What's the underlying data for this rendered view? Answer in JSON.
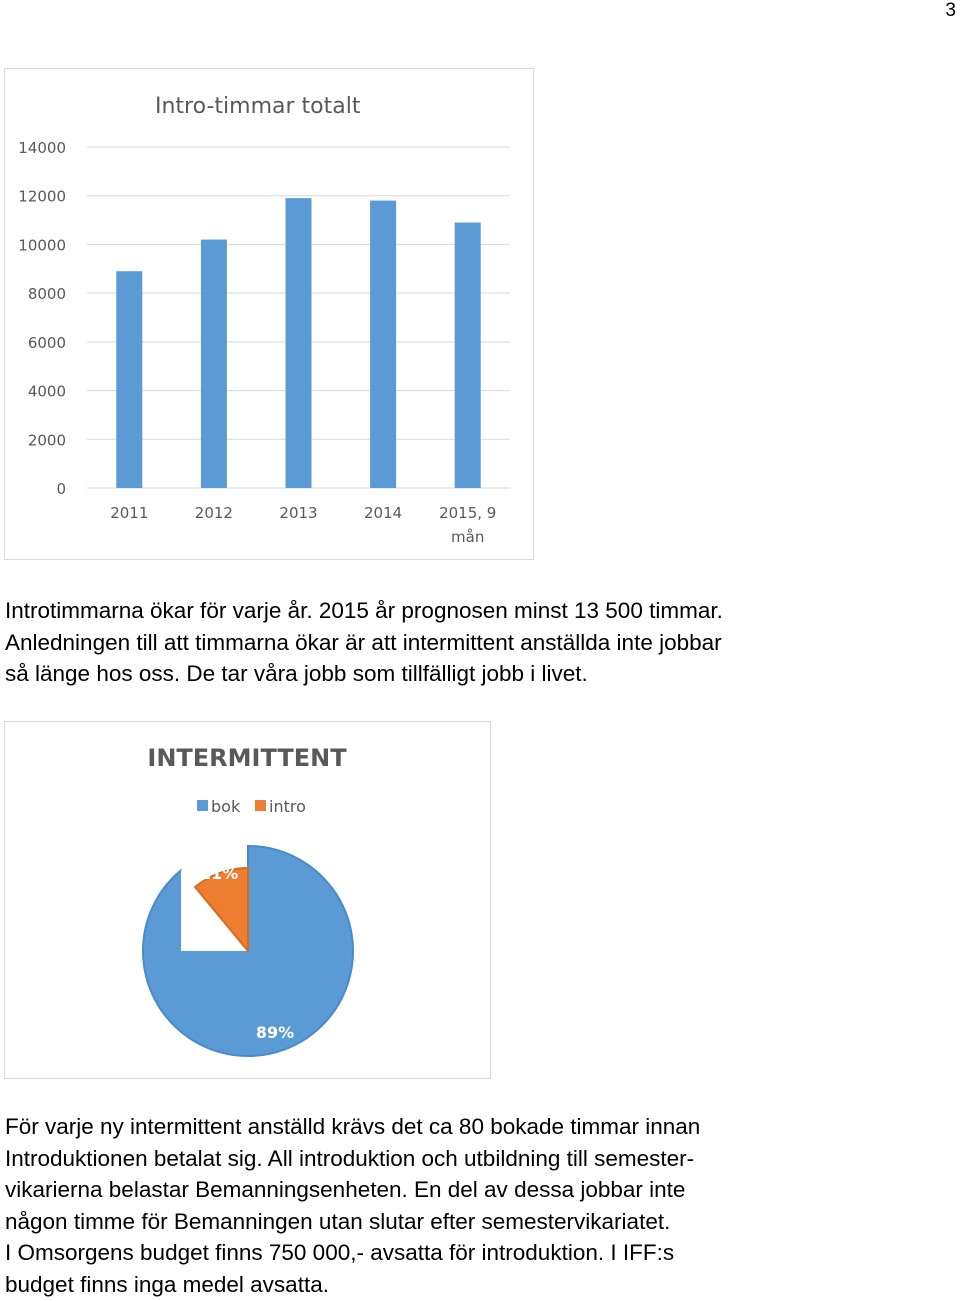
{
  "page": {
    "number": "3"
  },
  "paragraphs": {
    "first": "Introtimmarna ökar för varje år. 2015 år prognosen minst 13 500 timmar.\nAnledningen till att timmarna ökar är att intermittent anställda inte jobbar\nså länge hos oss. De tar våra jobb som tillfälligt jobb i livet.",
    "second": "För varje ny intermittent anställd krävs det ca 80 bokade timmar innan\nIntroduktionen betalat sig. All introduktion och utbildning till semester-\nvikarierna belastar Bemanningsenheten. En del av dessa jobbar inte\nnågon timme för Bemanningen utan slutar efter semestervikariatet.\nI Omsorgens budget finns 750 000,- avsatta för introduktion. I IFF:s\nbudget finns inga medel avsatta."
  },
  "chart_data": [
    {
      "type": "bar",
      "title": "Intro-timmar totalt",
      "categories": [
        "2011",
        "2012",
        "2013",
        "2014",
        "2015, 9 mån"
      ],
      "values": [
        8900,
        10200,
        11900,
        11800,
        10900
      ],
      "ylim": [
        0,
        14000
      ],
      "yticks": [
        "0",
        "2000",
        "4000",
        "6000",
        "8000",
        "10000",
        "12000",
        "14000"
      ],
      "grid": true,
      "colors": {
        "bar": "#5b9bd5",
        "grid": "#d9d9d9",
        "title": "#595959",
        "tick": "#595959"
      }
    },
    {
      "type": "pie",
      "title": "INTERMITTENT",
      "legend_position": "top",
      "slices": [
        {
          "name": "bok",
          "value": 89,
          "label": "89%",
          "color": "#5b9bd5"
        },
        {
          "name": "intro",
          "value": 11,
          "label": "11%",
          "color": "#ed7d31"
        }
      ],
      "colors": {
        "title": "#595959",
        "legend_text": "#595959",
        "label": "#ffffff"
      }
    }
  ]
}
